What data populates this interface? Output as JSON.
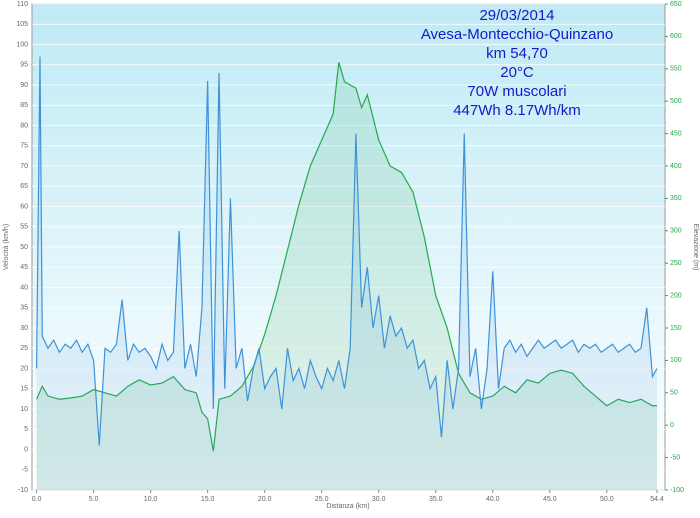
{
  "chart_data": {
    "type": "line",
    "annotations": [
      "29/03/2014",
      "Avesa-Montecchio-Quinzano",
      "km 54,70",
      "20°C",
      "70W muscolari",
      "447Wh   8.17Wh/km"
    ],
    "xlabel": "Distanza  (km)",
    "ylabel": "Velocità (km/h)",
    "y2label": "Elevazione (m)",
    "xlim": [
      -0.4,
      55.1
    ],
    "ylim": [
      -10,
      110
    ],
    "y2lim": [
      -100,
      650
    ],
    "xticks": [
      {
        "value": 0,
        "label": "0.0"
      },
      {
        "value": 5,
        "label": "5.0"
      },
      {
        "value": 10,
        "label": "10.0"
      },
      {
        "value": 15,
        "label": "15.0"
      },
      {
        "value": 20,
        "label": "20.0"
      },
      {
        "value": 25,
        "label": "25.0"
      },
      {
        "value": 30,
        "label": "30.0"
      },
      {
        "value": 35,
        "label": "35.0"
      },
      {
        "value": 40,
        "label": "40.0"
      },
      {
        "value": 45,
        "label": "45.0"
      },
      {
        "value": 50,
        "label": "50.0"
      },
      54.4
    ],
    "yticks": [
      -10,
      -5,
      0,
      5,
      10,
      15,
      20,
      25,
      30,
      35,
      40,
      45,
      50,
      55,
      60,
      65,
      70,
      75,
      80,
      85,
      90,
      95,
      100,
      105,
      110
    ],
    "y2ticks": [
      -100,
      -50,
      0,
      50,
      100,
      150,
      200,
      250,
      300,
      350,
      400,
      450,
      500,
      550,
      600,
      650
    ],
    "grid": true,
    "series": [
      {
        "name": "Velocità",
        "color": "#3f92d8",
        "x": [
          0,
          0.3,
          0.5,
          1,
          1.5,
          2,
          2.5,
          3,
          3.5,
          4,
          4.5,
          5,
          5.5,
          6,
          6.5,
          7,
          7.5,
          8,
          8.5,
          9,
          9.5,
          10,
          10.5,
          11,
          11.5,
          12,
          12.5,
          13,
          13.5,
          14,
          14.5,
          15,
          15.5,
          16,
          16.5,
          17,
          17.5,
          18,
          18.5,
          19,
          19.5,
          20,
          20.5,
          21,
          21.5,
          22,
          22.5,
          23,
          23.5,
          24,
          24.5,
          25,
          25.5,
          26,
          26.5,
          27,
          27.5,
          28,
          28.5,
          29,
          29.5,
          30,
          30.5,
          31,
          31.5,
          32,
          32.5,
          33,
          33.5,
          34,
          34.5,
          35,
          35.5,
          36,
          36.5,
          37,
          37.5,
          38,
          38.5,
          39,
          39.5,
          40,
          40.5,
          41,
          41.5,
          42,
          42.5,
          43,
          43.5,
          44,
          44.5,
          45,
          45.5,
          46,
          46.5,
          47,
          47.5,
          48,
          48.5,
          49,
          49.5,
          50,
          50.5,
          51,
          51.5,
          52,
          52.5,
          53,
          53.5,
          54,
          54.4
        ],
        "values": [
          20,
          97,
          28,
          25,
          27,
          24,
          26,
          25,
          27,
          24,
          26,
          22,
          1,
          25,
          24,
          26,
          37,
          22,
          26,
          24,
          25,
          23,
          20,
          26,
          22,
          24,
          54,
          20,
          26,
          18,
          35,
          91,
          10,
          93,
          15,
          62,
          20,
          25,
          12,
          20,
          25,
          15,
          18,
          20,
          10,
          25,
          17,
          20,
          15,
          22,
          18,
          15,
          20,
          17,
          22,
          15,
          25,
          78,
          35,
          45,
          30,
          38,
          25,
          33,
          28,
          30,
          25,
          27,
          20,
          22,
          15,
          18,
          3,
          22,
          10,
          20,
          78,
          18,
          25,
          10,
          20,
          44,
          15,
          25,
          27,
          24,
          26,
          23,
          25,
          27,
          25,
          26,
          27,
          25,
          26,
          27,
          24,
          26,
          25,
          26,
          24,
          25,
          26,
          24,
          25,
          26,
          24,
          25,
          35,
          18,
          20
        ]
      },
      {
        "name": "Elevazione",
        "color": "#26a84c",
        "axis": "y2",
        "x": [
          0,
          0.5,
          1,
          2,
          3,
          4,
          5,
          6,
          7,
          8,
          9,
          10,
          11,
          12,
          13,
          14,
          14.5,
          15,
          15.5,
          16,
          17,
          18,
          19,
          20,
          21,
          22,
          23,
          24,
          25,
          26,
          26.5,
          27,
          28,
          28.5,
          29,
          30,
          31,
          32,
          33,
          34,
          35,
          36,
          37,
          38,
          39,
          40,
          41,
          42,
          43,
          44,
          45,
          46,
          47,
          48,
          49,
          50,
          51,
          52,
          53,
          54,
          54.4
        ],
        "values": [
          40,
          60,
          45,
          40,
          42,
          45,
          55,
          50,
          45,
          60,
          70,
          62,
          65,
          75,
          55,
          50,
          20,
          10,
          -40,
          40,
          45,
          60,
          90,
          140,
          200,
          270,
          340,
          400,
          440,
          480,
          560,
          530,
          520,
          490,
          510,
          440,
          400,
          390,
          360,
          290,
          200,
          150,
          80,
          50,
          40,
          45,
          60,
          50,
          70,
          65,
          80,
          85,
          80,
          60,
          45,
          30,
          40,
          35,
          40,
          30,
          30
        ]
      }
    ]
  }
}
